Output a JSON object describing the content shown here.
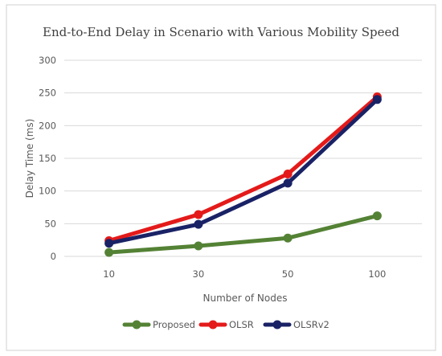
{
  "chart_data": {
    "type": "line",
    "title": "End-to-End Delay in Scenario with Various Mobility Speed",
    "xlabel": "Number of Nodes",
    "ylabel": "Delay Time (ms)",
    "categories": [
      "10",
      "30",
      "50",
      "100"
    ],
    "ylim": [
      0,
      300
    ],
    "yticks": [
      "0",
      "50",
      "100",
      "150",
      "200",
      "250",
      "300"
    ],
    "grid": true,
    "legend_position": "bottom",
    "series": [
      {
        "name": "Proposed",
        "color": "#548235",
        "values": [
          6,
          16,
          28,
          62
        ]
      },
      {
        "name": "OLSR",
        "color": "#e41a1a",
        "values": [
          24,
          64,
          126,
          244
        ]
      },
      {
        "name": "OLSRv2",
        "color": "#1a2266",
        "values": [
          20,
          49,
          112,
          240
        ]
      }
    ]
  }
}
